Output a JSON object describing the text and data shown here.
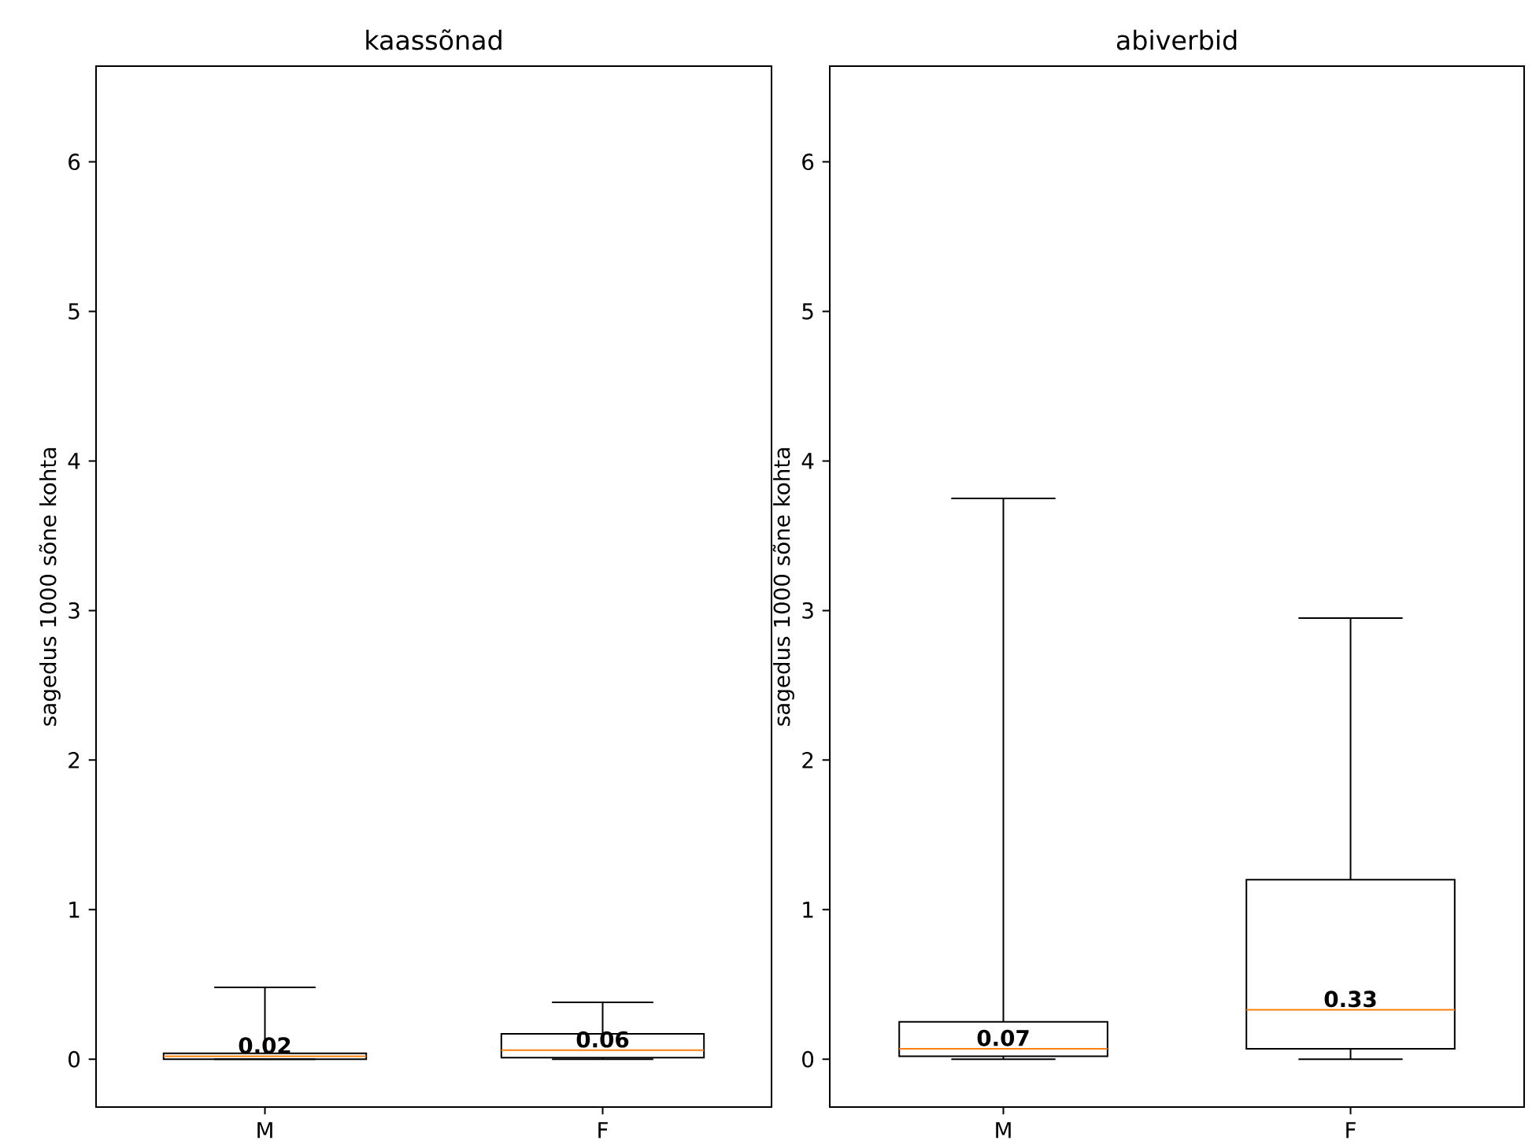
{
  "chart_data": [
    {
      "type": "box",
      "title": "kaassõnad",
      "ylabel": "sagedus 1000 sõne kohta",
      "categories": [
        "M",
        "F"
      ],
      "color": "#000000",
      "value_labels": [
        "0.02",
        "0.06"
      ],
      "grid": false,
      "boxes": [
        {
          "low": 0,
          "q1": 0.0,
          "median": 0.02,
          "q3": 0.04,
          "high": 0.48
        },
        {
          "low": 0,
          "q1": 0.01,
          "median": 0.06,
          "q3": 0.17,
          "high": 0.38
        }
      ],
      "ylim": [
        -0.32,
        6.64
      ],
      "yticks": [
        0,
        1,
        2,
        3,
        4,
        5,
        6
      ]
    },
    {
      "type": "box",
      "title": "abiverbid",
      "ylabel": "sagedus 1000 sõne kohta",
      "categories": [
        "M",
        "F"
      ],
      "color": "#000000",
      "value_labels": [
        "0.07",
        "0.33"
      ],
      "grid": false,
      "boxes": [
        {
          "low": 0,
          "q1": 0.02,
          "median": 0.07,
          "q3": 0.25,
          "high": 3.75
        },
        {
          "low": 0,
          "q1": 0.07,
          "median": 0.33,
          "q3": 1.2,
          "high": 2.95
        }
      ],
      "ylim": [
        -0.32,
        6.64
      ],
      "yticks": [
        0,
        1,
        2,
        3,
        4,
        5,
        6
      ]
    }
  ]
}
